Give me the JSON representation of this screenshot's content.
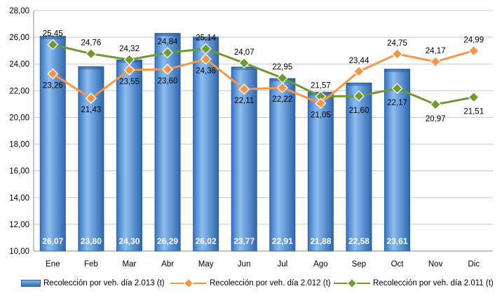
{
  "chart_data": {
    "type": "bar",
    "categories": [
      "Ene",
      "Feb",
      "Mar",
      "Abr",
      "May",
      "Jun",
      "Jul",
      "Ago",
      "Sep",
      "Oct",
      "Nov",
      "Dic"
    ],
    "ylim": [
      10,
      28
    ],
    "yticks": [
      "10,00",
      "12,00",
      "14,00",
      "16,00",
      "18,00",
      "20,00",
      "22,00",
      "24,00",
      "26,00",
      "28,00"
    ],
    "grid": true,
    "legend_position": "bottom",
    "series": [
      {
        "name": "Recolección por veh. día 2.013 (t)",
        "kind": "bar",
        "color": "#4a86cc",
        "values": [
          26.07,
          23.8,
          24.3,
          26.29,
          26.02,
          23.77,
          22.91,
          21.88,
          22.58,
          23.61,
          null,
          null
        ],
        "labels": [
          "26,07",
          "23,80",
          "24,30",
          "26,29",
          "26,02",
          "23,77",
          "22,91",
          "21,88",
          "22,58",
          "23,61",
          "",
          ""
        ]
      },
      {
        "name": "Recolección por veh. día 2.012 (t)",
        "kind": "line",
        "color": "#f79646",
        "values": [
          23.26,
          21.43,
          23.55,
          23.6,
          24.36,
          22.11,
          22.22,
          21.05,
          23.44,
          24.75,
          24.17,
          24.99
        ],
        "labels": [
          "23,26",
          "21,43",
          "23,55",
          "23,60",
          "24,36",
          "22,11",
          "22,22",
          "21,05",
          "23,44",
          "24,75",
          "24,17",
          "24,99"
        ]
      },
      {
        "name": "Recolección por veh. día 2.011 (t)",
        "kind": "line",
        "color": "#6e9a2f",
        "values": [
          25.45,
          24.76,
          24.32,
          24.84,
          25.14,
          24.07,
          22.95,
          21.57,
          21.6,
          22.17,
          20.97,
          21.51
        ],
        "labels": [
          "25,45",
          "24,76",
          "24,32",
          "24,84",
          "25,14",
          "24,07",
          "22,95",
          "21,57",
          "21,60",
          "22,17",
          "20,97",
          "21,51"
        ]
      }
    ]
  }
}
